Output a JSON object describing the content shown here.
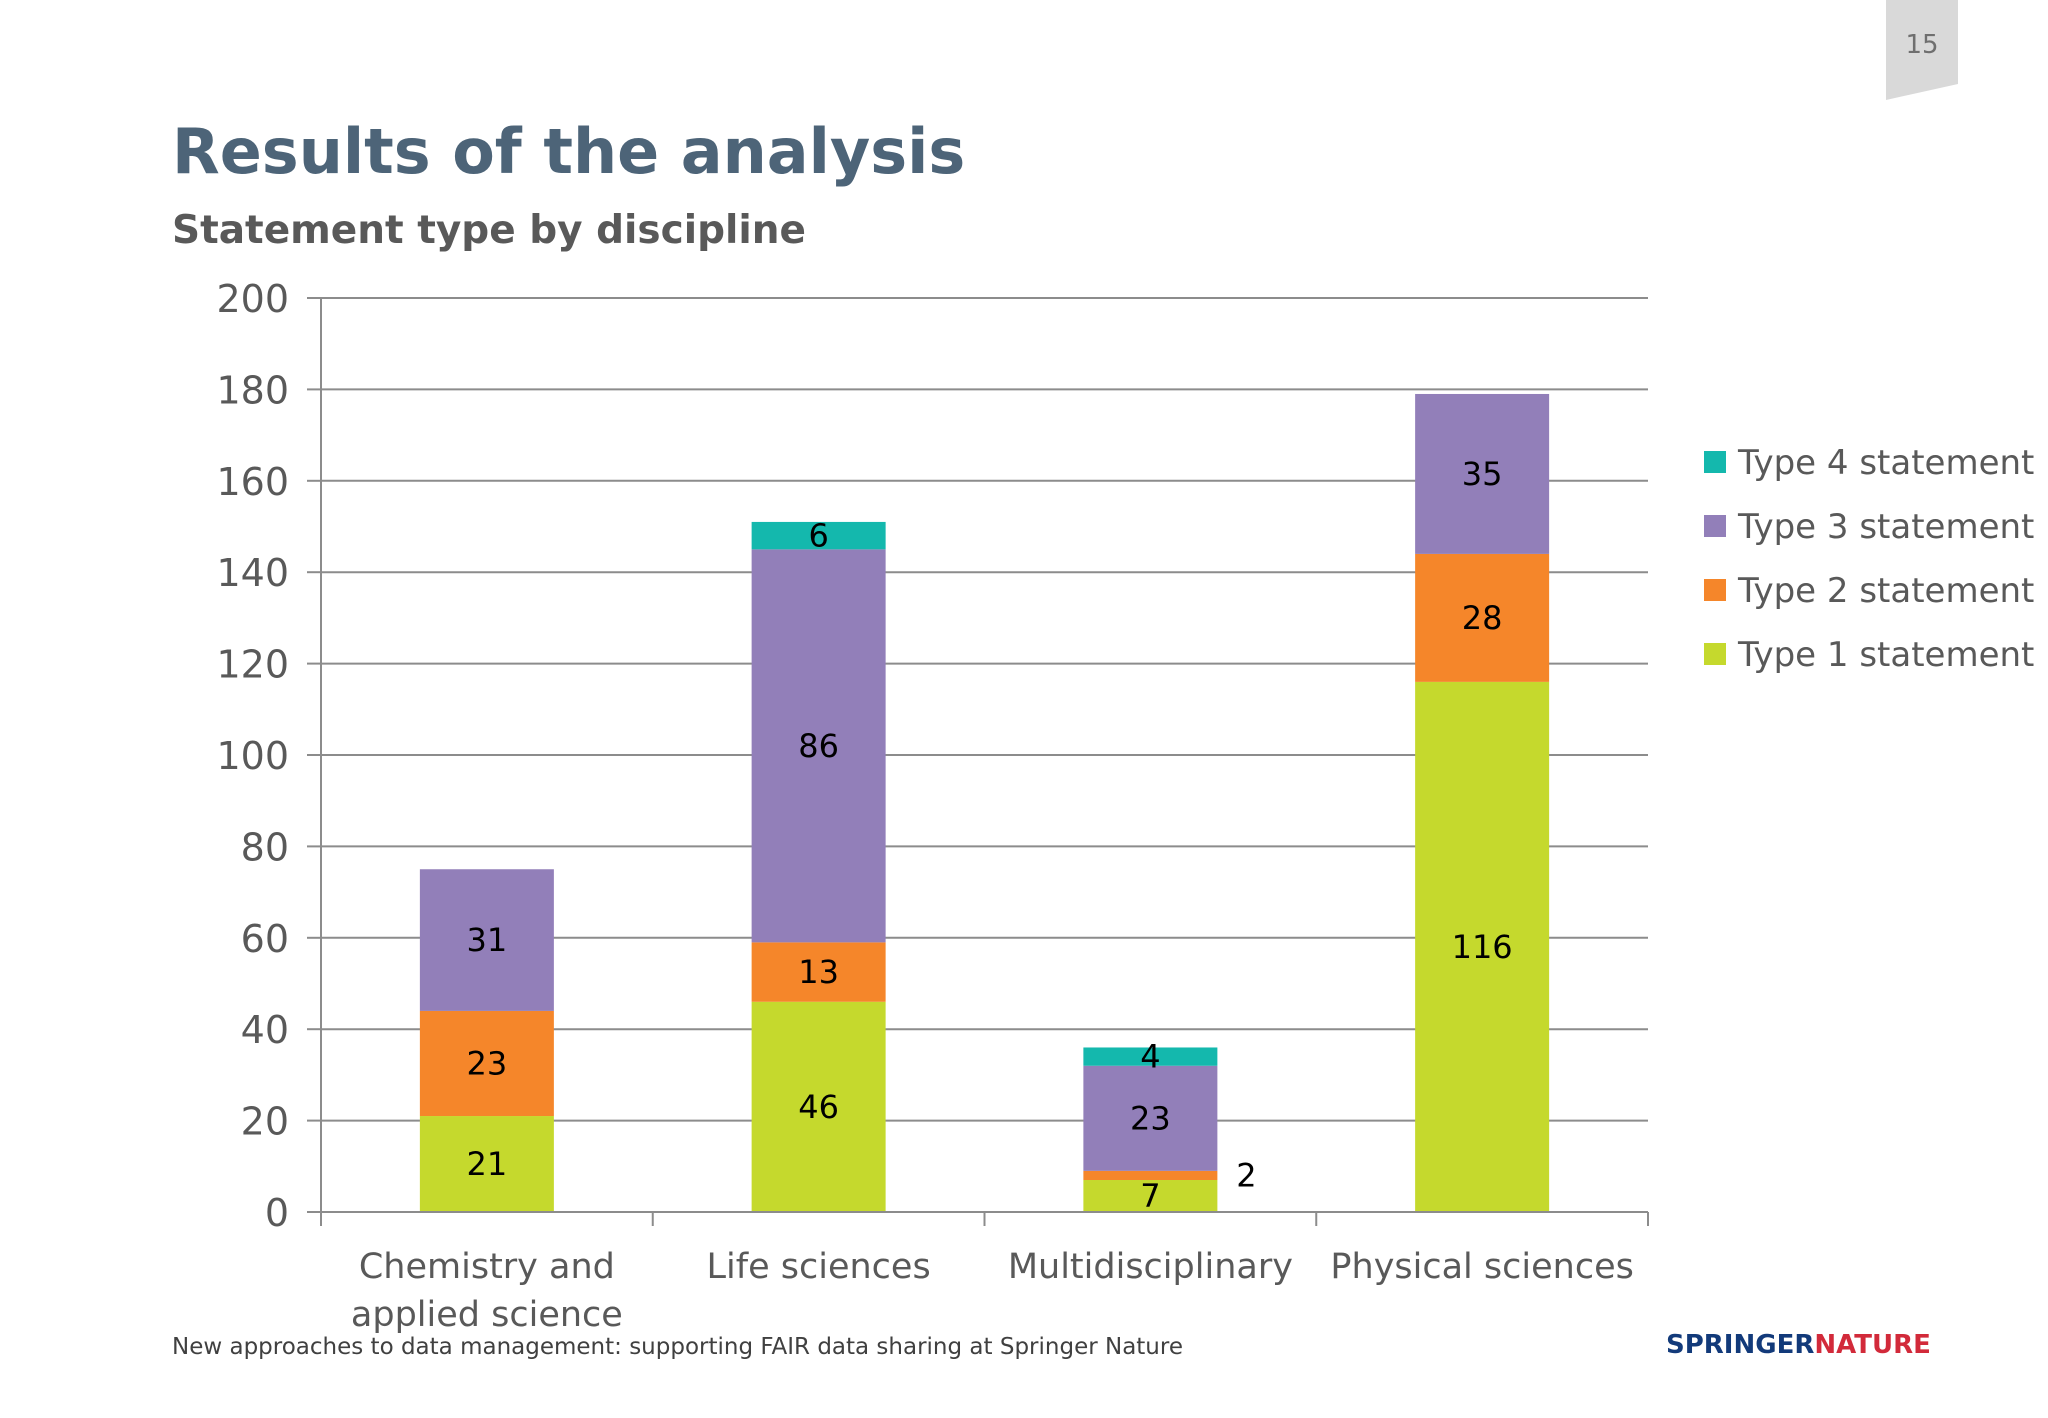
{
  "slide": {
    "page_number": "15",
    "title": "Results of the analysis",
    "subtitle": "Statement type by discipline",
    "footer": "New approaches to data management: supporting FAIR data sharing at Springer Nature",
    "brand": {
      "word1": "SPRINGER",
      "word2": "NATURE"
    }
  },
  "chart_data": {
    "type": "bar",
    "stacked": true,
    "title": "",
    "xlabel": "",
    "ylabel": "",
    "ylim": [
      0,
      200
    ],
    "yticks": [
      0,
      20,
      40,
      60,
      80,
      100,
      120,
      140,
      160,
      180,
      200
    ],
    "grid": true,
    "legend_position": "right",
    "categories": [
      [
        "Chemistry and",
        "applied science"
      ],
      [
        "Life sciences"
      ],
      [
        "Multidisciplinary"
      ],
      [
        "Physical sciences"
      ]
    ],
    "series": [
      {
        "name": "Type 1 statement",
        "color": "#c5d92d",
        "values": [
          21,
          46,
          7,
          116
        ]
      },
      {
        "name": "Type 2 statement",
        "color": "#f5862a",
        "values": [
          23,
          13,
          2,
          28
        ]
      },
      {
        "name": "Type 3 statement",
        "color": "#927fb9",
        "values": [
          31,
          86,
          23,
          35
        ]
      },
      {
        "name": "Type 4 statement",
        "color": "#14b8ad",
        "values": [
          0,
          6,
          4,
          0
        ]
      }
    ]
  }
}
